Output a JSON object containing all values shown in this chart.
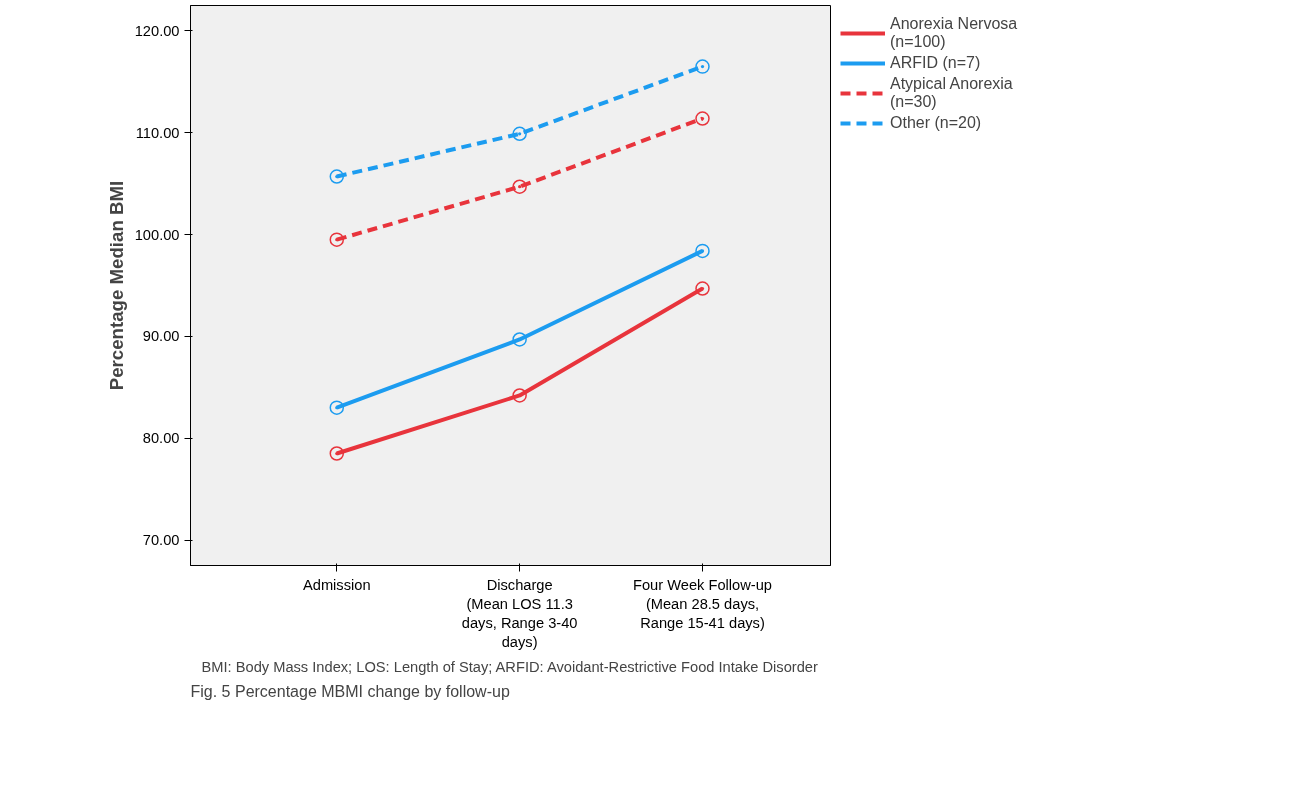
{
  "chart_data": {
    "type": "line",
    "ylabel": "Percentage Median BMI",
    "categories": [
      "Admission",
      "Discharge\n(Mean LOS 11.3\ndays, Range 3-40\ndays)",
      "Four Week Follow-up\n(Mean 28.5 days,\nRange 15-41 days)"
    ],
    "series": [
      {
        "name": "Anorexia Nervosa\n(n=100)",
        "color": "#e8343c",
        "values": [
          78.5,
          84.2,
          94.7
        ],
        "line_style": "solid"
      },
      {
        "name": "ARFID (n=7)",
        "color": "#1c9cf0",
        "values": [
          83.0,
          89.7,
          98.4
        ],
        "line_style": "solid"
      },
      {
        "name": "Atypical Anorexia\n(n=30)",
        "color": "#e8343c",
        "values": [
          99.5,
          104.7,
          111.4
        ],
        "line_style": "dashed"
      },
      {
        "name": "Other (n=20)",
        "color": "#1c9cf0",
        "values": [
          105.7,
          109.9,
          116.5
        ],
        "line_style": "dashed"
      }
    ],
    "ylim": [
      67.5,
      122.5
    ],
    "yticks": [
      {
        "value": 70,
        "label": "70.00"
      },
      {
        "value": 80,
        "label": "80.00"
      },
      {
        "value": 90,
        "label": "90.00"
      },
      {
        "value": 100,
        "label": "100.00"
      },
      {
        "value": 110,
        "label": "110.00"
      },
      {
        "value": 120,
        "label": "120.00"
      }
    ],
    "grid": false,
    "legend": "right",
    "marker": "circle",
    "annotations": [
      "BMI: Body Mass Index; LOS: Length of Stay; ARFID: Avoidant-Restrictive Food Intake Disorder",
      "Fig. 5 Percentage MBMI change by follow-up"
    ]
  }
}
